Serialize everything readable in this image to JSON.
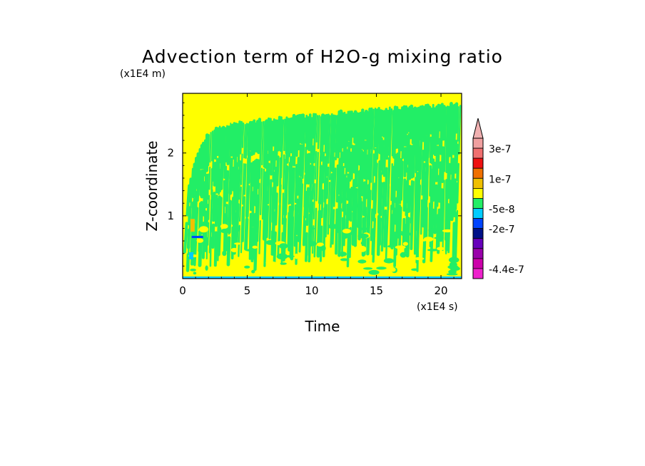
{
  "chart_data": {
    "type": "heatmap",
    "title": "Advection term of H2O-g mixing ratio",
    "xlabel": "Time",
    "ylabel": "Z-coordinate",
    "x_unit": "(x1E4 s)",
    "y_unit": "(x1E4 m)",
    "xlim": [
      0,
      21.6
    ],
    "ylim": [
      0,
      2.95
    ],
    "x_ticks": [
      {
        "value": 0,
        "label": "0"
      },
      {
        "value": 5,
        "label": "5"
      },
      {
        "value": 10,
        "label": "10"
      },
      {
        "value": 15,
        "label": "15"
      },
      {
        "value": 20,
        "label": "20"
      }
    ],
    "y_ticks": [
      {
        "value": 1,
        "label": "1"
      },
      {
        "value": 2,
        "label": "2"
      }
    ],
    "background_level_color": "#ffff00",
    "pattern_color": "#22ee66",
    "pattern_top": [
      [
        0.5,
        1.5
      ],
      [
        1.0,
        1.95
      ],
      [
        2.0,
        2.35
      ],
      [
        3.0,
        2.45
      ],
      [
        5.0,
        2.52
      ],
      [
        7.5,
        2.58
      ],
      [
        10.0,
        2.62
      ],
      [
        12.5,
        2.67
      ],
      [
        15.0,
        2.72
      ],
      [
        17.5,
        2.75
      ],
      [
        20.0,
        2.78
      ],
      [
        21.0,
        2.8
      ]
    ],
    "colorbar": {
      "levels": [
        {
          "color": "#f0a0a0",
          "label": ""
        },
        {
          "color": "#f07070",
          "label": "3e-7"
        },
        {
          "color": "#ee1111",
          "label": ""
        },
        {
          "color": "#f07000",
          "label": ""
        },
        {
          "color": "#f0c000",
          "label": "1e-7"
        },
        {
          "color": "#ffff00",
          "label": ""
        },
        {
          "color": "#22ee66",
          "label": ""
        },
        {
          "color": "#00ccff",
          "label": "-5e-8"
        },
        {
          "color": "#0044ff",
          "label": ""
        },
        {
          "color": "#001188",
          "label": "-2e-7"
        },
        {
          "color": "#6600bb",
          "label": ""
        },
        {
          "color": "#9900aa",
          "label": ""
        },
        {
          "color": "#cc00aa",
          "label": ""
        },
        {
          "color": "#ee22cc",
          "label": "-4.4e-7"
        }
      ],
      "overflow_triangle_color": "#f0b0b0"
    }
  }
}
